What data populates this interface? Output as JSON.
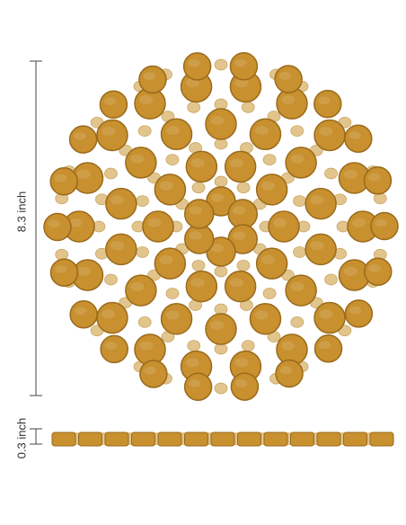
{
  "dimensions": {
    "diameter_label": "8.3 inch",
    "thickness_label": "0.3 inch"
  },
  "product": {
    "material_color": "#c8902e",
    "edge_color": "#9a6a1c",
    "connector_color": "#e2c58d"
  }
}
